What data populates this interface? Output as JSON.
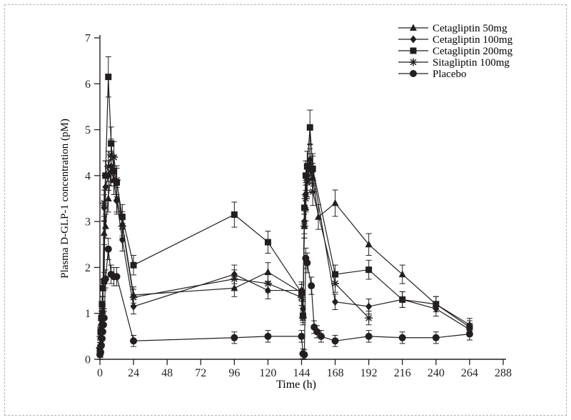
{
  "figure": {
    "background": "#ffffff",
    "ink_color": "#231f20",
    "border_color": "#b5b2b2"
  },
  "chart_data": {
    "type": "line",
    "title": "",
    "xlabel": "Time (h)",
    "ylabel": "Plasma D-GLP-1 concentration (pM)",
    "xlim": [
      0,
      288
    ],
    "ylim": [
      0,
      7
    ],
    "xticks": [
      0,
      24,
      48,
      72,
      96,
      120,
      144,
      168,
      192,
      216,
      240,
      264,
      288
    ],
    "yticks": [
      0,
      1,
      2,
      3,
      4,
      5,
      6,
      7
    ],
    "grid": false,
    "legend_position": "top-right",
    "marker_color": "#231f20",
    "error_bars_approx": {
      "base": 0.1,
      "per_value": 0.055
    },
    "series": [
      {
        "name": "Cetagliptin 50mg",
        "marker": "triangle",
        "points": [
          [
            0,
            0.3
          ],
          [
            0.5,
            0.5
          ],
          [
            1,
            0.8
          ],
          [
            1.5,
            0.9
          ],
          [
            2,
            1.05
          ],
          [
            3,
            2.75
          ],
          [
            4,
            2.9
          ],
          [
            6,
            3.5
          ],
          [
            8,
            4.1
          ],
          [
            10,
            3.9
          ],
          [
            12,
            3.5
          ],
          [
            16,
            2.95
          ],
          [
            24,
            1.4
          ],
          [
            96,
            1.55
          ],
          [
            120,
            1.9
          ],
          [
            144,
            1.45
          ],
          [
            145,
            1.0
          ],
          [
            146,
            2.9
          ],
          [
            147,
            3.3
          ],
          [
            148,
            3.95
          ],
          [
            150,
            4.15
          ],
          [
            152,
            3.95
          ],
          [
            156,
            3.1
          ],
          [
            168,
            3.4
          ],
          [
            192,
            2.5
          ],
          [
            216,
            1.85
          ],
          [
            240,
            1.2
          ],
          [
            264,
            0.75
          ]
        ]
      },
      {
        "name": "Cetagliptin 100mg",
        "marker": "diamond",
        "points": [
          [
            0,
            0.25
          ],
          [
            0.5,
            0.55
          ],
          [
            1,
            0.75
          ],
          [
            1.5,
            1.0
          ],
          [
            2,
            1.2
          ],
          [
            3,
            3.3
          ],
          [
            4,
            3.75
          ],
          [
            6,
            4.0
          ],
          [
            8,
            4.2
          ],
          [
            10,
            3.9
          ],
          [
            12,
            3.45
          ],
          [
            16,
            2.6
          ],
          [
            24,
            1.15
          ],
          [
            96,
            1.85
          ],
          [
            120,
            1.5
          ],
          [
            144,
            1.5
          ],
          [
            145,
            1.1
          ],
          [
            146,
            3.0
          ],
          [
            147,
            3.6
          ],
          [
            148,
            4.0
          ],
          [
            150,
            4.35
          ],
          [
            152,
            4.1
          ],
          [
            168,
            1.25
          ],
          [
            192,
            1.15
          ],
          [
            216,
            1.3
          ],
          [
            240,
            1.1
          ],
          [
            264,
            0.65
          ]
        ]
      },
      {
        "name": "Cetagliptin 200mg",
        "marker": "square",
        "points": [
          [
            0,
            0.2
          ],
          [
            0.5,
            0.6
          ],
          [
            1,
            0.9
          ],
          [
            1.5,
            1.2
          ],
          [
            2,
            1.55
          ],
          [
            3,
            1.7
          ],
          [
            4,
            4.0
          ],
          [
            6,
            6.15
          ],
          [
            8,
            4.7
          ],
          [
            10,
            4.1
          ],
          [
            12,
            3.85
          ],
          [
            16,
            3.1
          ],
          [
            24,
            2.05
          ],
          [
            96,
            3.15
          ],
          [
            120,
            2.55
          ],
          [
            144,
            1.45
          ],
          [
            145,
            0.95
          ],
          [
            146,
            3.3
          ],
          [
            147,
            4.0
          ],
          [
            148,
            4.2
          ],
          [
            150,
            5.05
          ],
          [
            152,
            4.15
          ],
          [
            168,
            1.85
          ],
          [
            192,
            1.95
          ],
          [
            216,
            1.3
          ],
          [
            240,
            1.2
          ],
          [
            264,
            0.7
          ]
        ]
      },
      {
        "name": "Sitagliptin 100mg",
        "marker": "asterisk",
        "points": [
          [
            0,
            0.25
          ],
          [
            0.5,
            0.5
          ],
          [
            1,
            0.7
          ],
          [
            1.5,
            1.0
          ],
          [
            2,
            1.1
          ],
          [
            3,
            3.4
          ],
          [
            4,
            4.0
          ],
          [
            6,
            4.2
          ],
          [
            8,
            4.45
          ],
          [
            10,
            4.4
          ],
          [
            12,
            3.9
          ],
          [
            16,
            2.9
          ],
          [
            24,
            1.35
          ],
          [
            96,
            1.75
          ],
          [
            120,
            1.65
          ],
          [
            144,
            1.35
          ],
          [
            145,
            0.9
          ],
          [
            146,
            2.9
          ],
          [
            147,
            3.5
          ],
          [
            148,
            3.85
          ],
          [
            150,
            4.25
          ],
          [
            152,
            3.65
          ],
          [
            168,
            1.65
          ],
          [
            192,
            0.9
          ]
        ]
      },
      {
        "name": "Placebo",
        "marker": "circle",
        "points": [
          [
            0,
            0.1
          ],
          [
            0.5,
            0.15
          ],
          [
            1,
            0.3
          ],
          [
            1.5,
            0.45
          ],
          [
            2,
            0.6
          ],
          [
            2.5,
            0.75
          ],
          [
            3,
            0.9
          ],
          [
            4,
            1.75
          ],
          [
            6,
            2.4
          ],
          [
            8,
            1.85
          ],
          [
            10,
            1.8
          ],
          [
            12,
            1.8
          ],
          [
            24,
            0.4
          ],
          [
            96,
            0.47
          ],
          [
            120,
            0.5
          ],
          [
            144,
            0.5
          ],
          [
            145,
            0.12
          ],
          [
            146,
            0.1
          ],
          [
            147,
            2.2
          ],
          [
            148,
            2.1
          ],
          [
            151,
            1.6
          ],
          [
            153,
            0.7
          ],
          [
            155,
            0.6
          ],
          [
            158,
            0.5
          ],
          [
            168,
            0.4
          ],
          [
            192,
            0.5
          ],
          [
            216,
            0.47
          ],
          [
            240,
            0.47
          ],
          [
            264,
            0.55
          ]
        ]
      }
    ]
  }
}
